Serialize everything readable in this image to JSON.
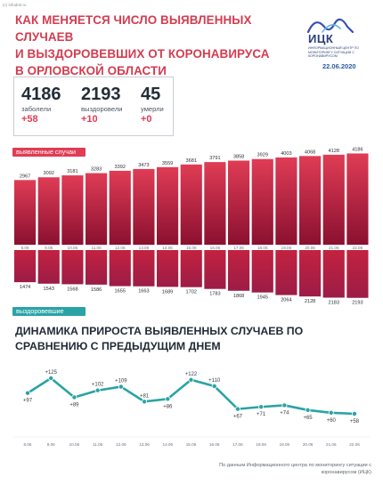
{
  "watermark": "(c) infodrel.ru",
  "title_lines": [
    "Как меняется число выявленных случаев",
    "и выздоровевших от коронавируса",
    "в Орловской области"
  ],
  "logo": {
    "name": "ИЦК",
    "subtitle": "Информационный центр по мониторингу ситуации с коронавирусом"
  },
  "date": "22.06.2020",
  "stats": [
    {
      "value": "4186",
      "label": "заболели",
      "delta": "+58"
    },
    {
      "value": "2193",
      "label": "выздоровели",
      "delta": "+10"
    },
    {
      "value": "45",
      "label": "умерли",
      "delta": "+0"
    }
  ],
  "colors": {
    "cases_top": "#e03c55",
    "cases_bottom": "#8a1030",
    "recovered_top": "#d0263f",
    "recovered_bottom": "#9c1c46",
    "line": "#2aa3a5",
    "title": "#d43c50"
  },
  "chart_data": [
    {
      "type": "bar",
      "categories": [
        "8.06",
        "9.06",
        "10.06",
        "11.06",
        "12.06",
        "13.06",
        "14.06",
        "15.06",
        "16.06",
        "17.06",
        "18.06",
        "19.06",
        "20.06",
        "21.06",
        "22.06"
      ],
      "series": [
        {
          "name": "выявленные случаи",
          "values": [
            2967,
            3092,
            3181,
            3283,
            3392,
            3473,
            3559,
            3681,
            3791,
            3858,
            3929,
            4003,
            4068,
            4128,
            4186
          ]
        },
        {
          "name": "выздоровевшие",
          "values": [
            1474,
            1543,
            1568,
            1586,
            1655,
            1663,
            1689,
            1702,
            1783,
            1868,
            1945,
            2064,
            2128,
            2183,
            2193
          ]
        }
      ]
    },
    {
      "type": "line",
      "title": "Динамика прироста выявленных случаев по сравнению с предыдущим днем",
      "categories": [
        "8.06",
        "9.06",
        "10.06",
        "11.06",
        "12.06",
        "13.06",
        "14.06",
        "15.06",
        "16.06",
        "17.06",
        "18.06",
        "19.06",
        "20.06",
        "21.06",
        "22.06"
      ],
      "values": [
        97,
        125,
        89,
        102,
        109,
        81,
        86,
        122,
        110,
        67,
        71,
        74,
        65,
        60,
        58
      ],
      "labels": [
        "+97",
        "+125",
        "+89",
        "+102",
        "+109",
        "+81",
        "+86",
        "+122",
        "+110",
        "+67",
        "+71",
        "+74",
        "+65",
        "+60",
        "+58"
      ]
    }
  ],
  "source": "По данным Информационного центра по мониторингу ситуации с коронавирусом (ИЦК)"
}
